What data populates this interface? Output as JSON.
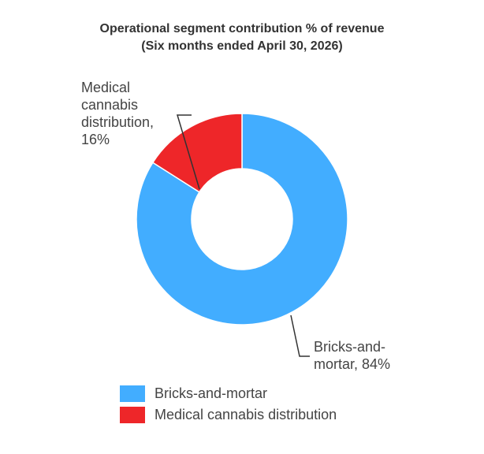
{
  "chart_data": {
    "type": "pie",
    "donut": true,
    "title": "Operational segment contribution % of revenue",
    "subtitle": "(Six months ended April 30, 2026)",
    "slices": [
      {
        "label": "Bricks-and-mortar",
        "value": 84,
        "color": "#42adff",
        "data_label_lines": [
          "Bricks-and-",
          "mortar, 84%"
        ]
      },
      {
        "label": "Medical cannabis distribution",
        "value": 16,
        "color": "#ee2629",
        "data_label_lines": [
          "Medical",
          "cannabis",
          "distribution,",
          "16%"
        ]
      }
    ],
    "legend": {
      "position": "bottom-left",
      "entries": [
        "Bricks-and-mortar",
        "Medical cannabis distribution"
      ]
    }
  }
}
